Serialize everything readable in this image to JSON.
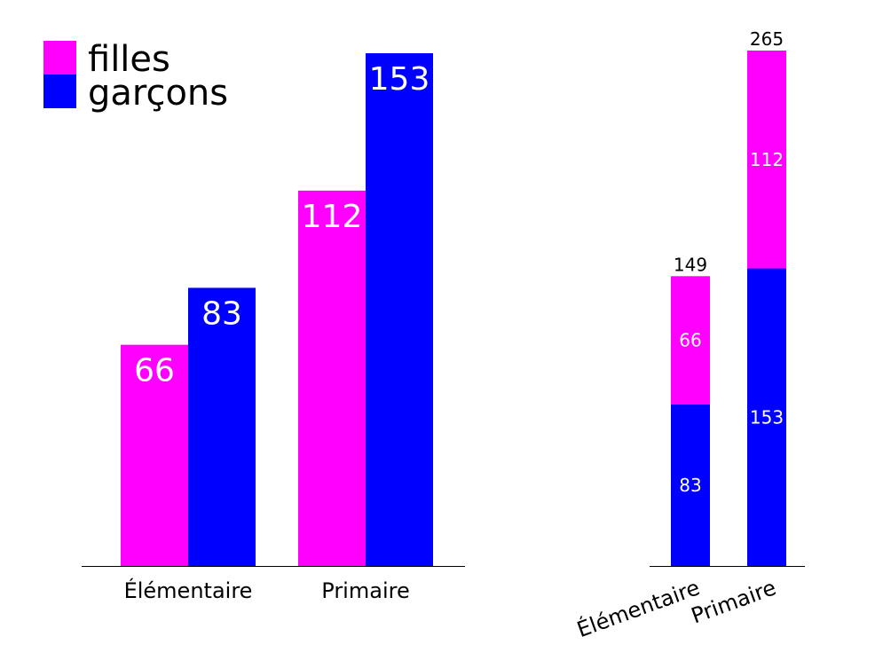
{
  "colors": {
    "filles": "#ff00ff",
    "garcons": "#0000ff",
    "axis": "#000000",
    "label_light": "#ffffff",
    "label_dark": "#000000"
  },
  "chart_data": [
    {
      "type": "bar",
      "layout": "grouped",
      "categories": [
        "Élémentaire",
        "Primaire"
      ],
      "series": [
        {
          "name": "filles",
          "values": [
            66,
            112
          ]
        },
        {
          "name": "garçons",
          "values": [
            83,
            153
          ]
        }
      ],
      "ylim": [
        0,
        153
      ],
      "legend": "top-left",
      "grid": false
    },
    {
      "type": "bar",
      "layout": "stacked",
      "categories": [
        "Élémentaire",
        "Primaire"
      ],
      "series": [
        {
          "name": "garçons",
          "values": [
            83,
            153
          ]
        },
        {
          "name": "filles",
          "values": [
            66,
            112
          ]
        }
      ],
      "totals": [
        149,
        265
      ],
      "ylim": [
        0,
        265
      ],
      "tick_label_rotation": 20,
      "grid": false
    }
  ]
}
